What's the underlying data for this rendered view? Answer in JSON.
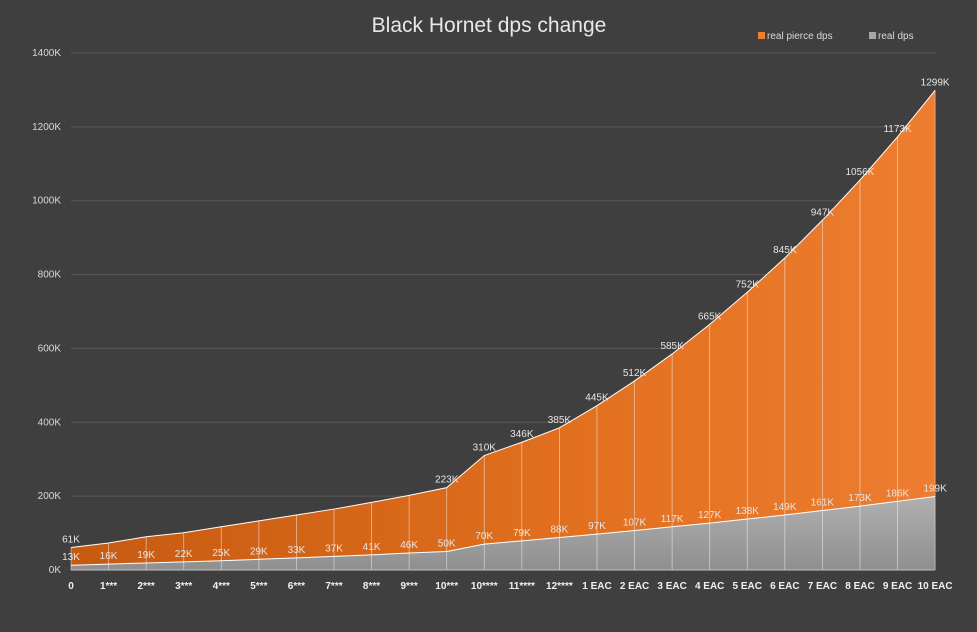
{
  "chart_data": {
    "type": "area",
    "title": "Black Hornet dps change",
    "categories": [
      "0",
      "1***",
      "2***",
      "3***",
      "4***",
      "5***",
      "6***",
      "7***",
      "8***",
      "9***",
      "10***",
      "10****",
      "11****",
      "12****",
      "1 EAC",
      "2 EAC",
      "3 EAC",
      "4 EAC",
      "5 EAC",
      "6 EAC",
      "7 EAC",
      "8 EAC",
      "9 EAC",
      "10 EAC"
    ],
    "y_ticks": [
      "0K",
      "200K",
      "400K",
      "600K",
      "800K",
      "1000K",
      "1200K",
      "1400K"
    ],
    "ylim": [
      0,
      1400
    ],
    "grid": true,
    "legend_position": "top-right",
    "series": [
      {
        "name": "real pierce dps",
        "color": "#ed7d31",
        "values": [
          61,
          73,
          90,
          101,
          117,
          133,
          149,
          165,
          183,
          202,
          223,
          310,
          346,
          385,
          445,
          512,
          585,
          665,
          752,
          845,
          947,
          1056,
          1173,
          1299
        ],
        "labels": [
          "61K",
          "",
          "",
          "",
          "",
          "",
          "",
          "",
          "",
          "",
          "223K",
          "310K",
          "346K",
          "385K",
          "445K",
          "512K",
          "585K",
          "665K",
          "752K",
          "845K",
          "947K",
          "1056K",
          "1173K",
          "1299K"
        ]
      },
      {
        "name": "real dps",
        "color": "#a6a6a6",
        "values": [
          13,
          16,
          19,
          22,
          25,
          29,
          33,
          37,
          41,
          46,
          50,
          70,
          79,
          88,
          97,
          107,
          117,
          127,
          138,
          149,
          161,
          173,
          186,
          199
        ],
        "labels": [
          "13K",
          "16K",
          "19K",
          "22K",
          "25K",
          "29K",
          "33K",
          "37K",
          "41K",
          "46K",
          "50K",
          "70K",
          "79K",
          "88K",
          "97K",
          "107K",
          "117K",
          "127K",
          "138K",
          "149K",
          "161K",
          "173K",
          "186K",
          "199K"
        ]
      }
    ]
  }
}
